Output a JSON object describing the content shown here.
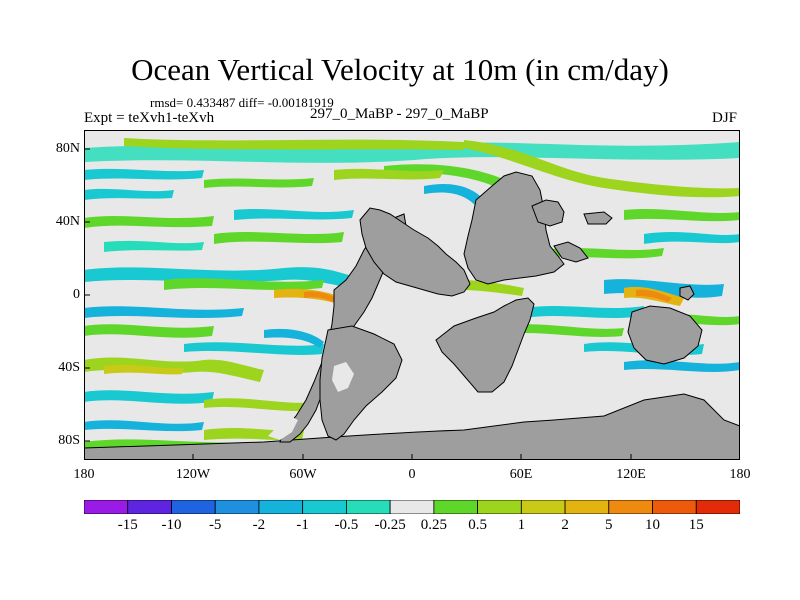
{
  "title": "Ocean Vertical Velocity at 10m (in cm/day)",
  "stats": "rmsd= 0.433487 diff= -0.00181919",
  "expt": "Expt = teXvh1-teXvh",
  "center_label": "297_0_MaBP - 297_0_MaBP",
  "season": "DJF",
  "lat_ticks": [
    "80N",
    "40N",
    "0",
    "40S",
    "80S"
  ],
  "lon_ticks": [
    "180",
    "120W",
    "60W",
    "0",
    "60E",
    "120E",
    "180"
  ],
  "colorbar": {
    "labels": [
      "-15",
      "-10",
      "-5",
      "-2",
      "-1",
      "-0.5",
      "-0.25",
      "0.25",
      "0.5",
      "1",
      "2",
      "5",
      "10",
      "15"
    ],
    "colors": [
      "#9a1be6",
      "#5f24e0",
      "#1f63e0",
      "#1f8fe0",
      "#15b2dc",
      "#19c9d2",
      "#27dcb8",
      "#e8e8e8",
      "#5fd62a",
      "#9cd41e",
      "#c9c918",
      "#e3b312",
      "#ed8a0f",
      "#ed5a0c",
      "#e22b08"
    ]
  },
  "land_color": "#9e9e9e",
  "ocean_background": "#e8e8e8"
}
